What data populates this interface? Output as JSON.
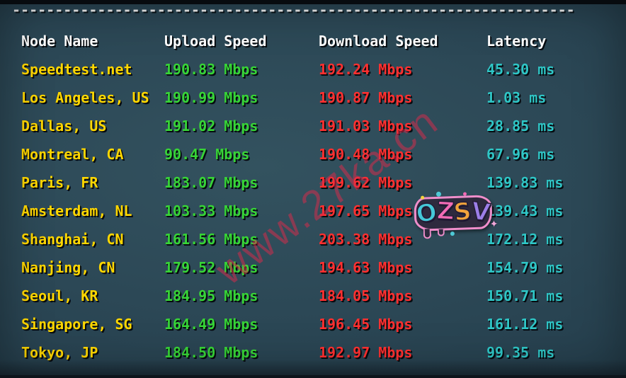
{
  "separator": "------------------------------------------------------------------",
  "table": {
    "headers": [
      "Node Name",
      "Upload Speed",
      "Download Speed",
      "Latency"
    ],
    "rows": [
      {
        "node": "Speedtest.net",
        "upload": "190.83 Mbps",
        "download": "192.24 Mbps",
        "latency": "45.30 ms"
      },
      {
        "node": "Los Angeles, US",
        "upload": "190.99 Mbps",
        "download": "190.87 Mbps",
        "latency": "1.03 ms"
      },
      {
        "node": "Dallas, US",
        "upload": "191.02 Mbps",
        "download": "191.03 Mbps",
        "latency": "28.85 ms"
      },
      {
        "node": "Montreal, CA",
        "upload": "90.47 Mbps",
        "download": "190.48 Mbps",
        "latency": "67.96 ms"
      },
      {
        "node": "Paris, FR",
        "upload": "183.07 Mbps",
        "download": "199.62 Mbps",
        "latency": "139.83 ms"
      },
      {
        "node": "Amsterdam, NL",
        "upload": "103.33 Mbps",
        "download": "197.65 Mbps",
        "latency": "139.43 ms"
      },
      {
        "node": "Shanghai, CN",
        "upload": "161.56 Mbps",
        "download": "203.38 Mbps",
        "latency": "172.12 ms"
      },
      {
        "node": "Nanjing, CN",
        "upload": "179.52 Mbps",
        "download": "194.63 Mbps",
        "latency": "154.79 ms"
      },
      {
        "node": "Seoul, KR",
        "upload": "184.95 Mbps",
        "download": "184.05 Mbps",
        "latency": "150.71 ms"
      },
      {
        "node": "Singapore, SG",
        "upload": "164.49 Mbps",
        "download": "196.45 Mbps",
        "latency": "161.12 ms"
      },
      {
        "node": "Tokyo, JP",
        "upload": "184.50 Mbps",
        "download": "192.97 Mbps",
        "latency": "99.35 ms"
      }
    ]
  },
  "watermark": {
    "text": "www.27ka.cn"
  },
  "sticker": {
    "letters": [
      "O",
      "Z",
      "S",
      "V"
    ],
    "sparkle": "✦"
  },
  "colors": {
    "header": "#ffffff",
    "node_name": "#ffd700",
    "upload": "#37d437",
    "download": "#ff3030",
    "latency": "#2fc6c6",
    "watermark": "#d92b4b"
  }
}
